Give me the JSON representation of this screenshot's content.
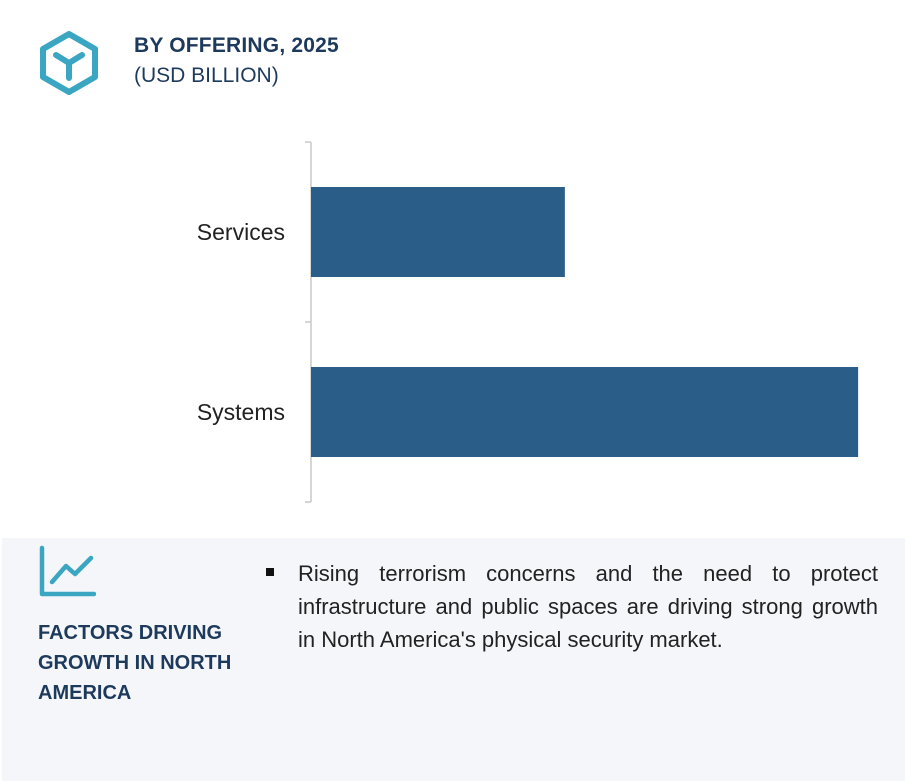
{
  "header": {
    "title": "BY OFFERING, 2025",
    "subtitle": "(USD BILLION)",
    "icon": "cube-logo-icon",
    "icon_color": "#3aa6c1"
  },
  "chart_data": {
    "type": "bar",
    "orientation": "horizontal",
    "title": "BY OFFERING, 2025",
    "subtitle": "(USD BILLION)",
    "categories": [
      "Services",
      "Systems"
    ],
    "values": [
      2.9,
      6.25
    ],
    "xlim": [
      0,
      6.5
    ],
    "xlabel": "",
    "ylabel": "",
    "grid": false,
    "bar_color": "#2a5d87"
  },
  "factors": {
    "icon": "trend-chart-icon",
    "icon_color": "#3aa6c1",
    "title": "FACTORS DRIVING GROWTH IN NORTH AMERICA",
    "bullets": [
      "Rising terrorism concerns and the need to protect infrastructure and public spaces are driving strong growth in North America's physical security market."
    ]
  }
}
